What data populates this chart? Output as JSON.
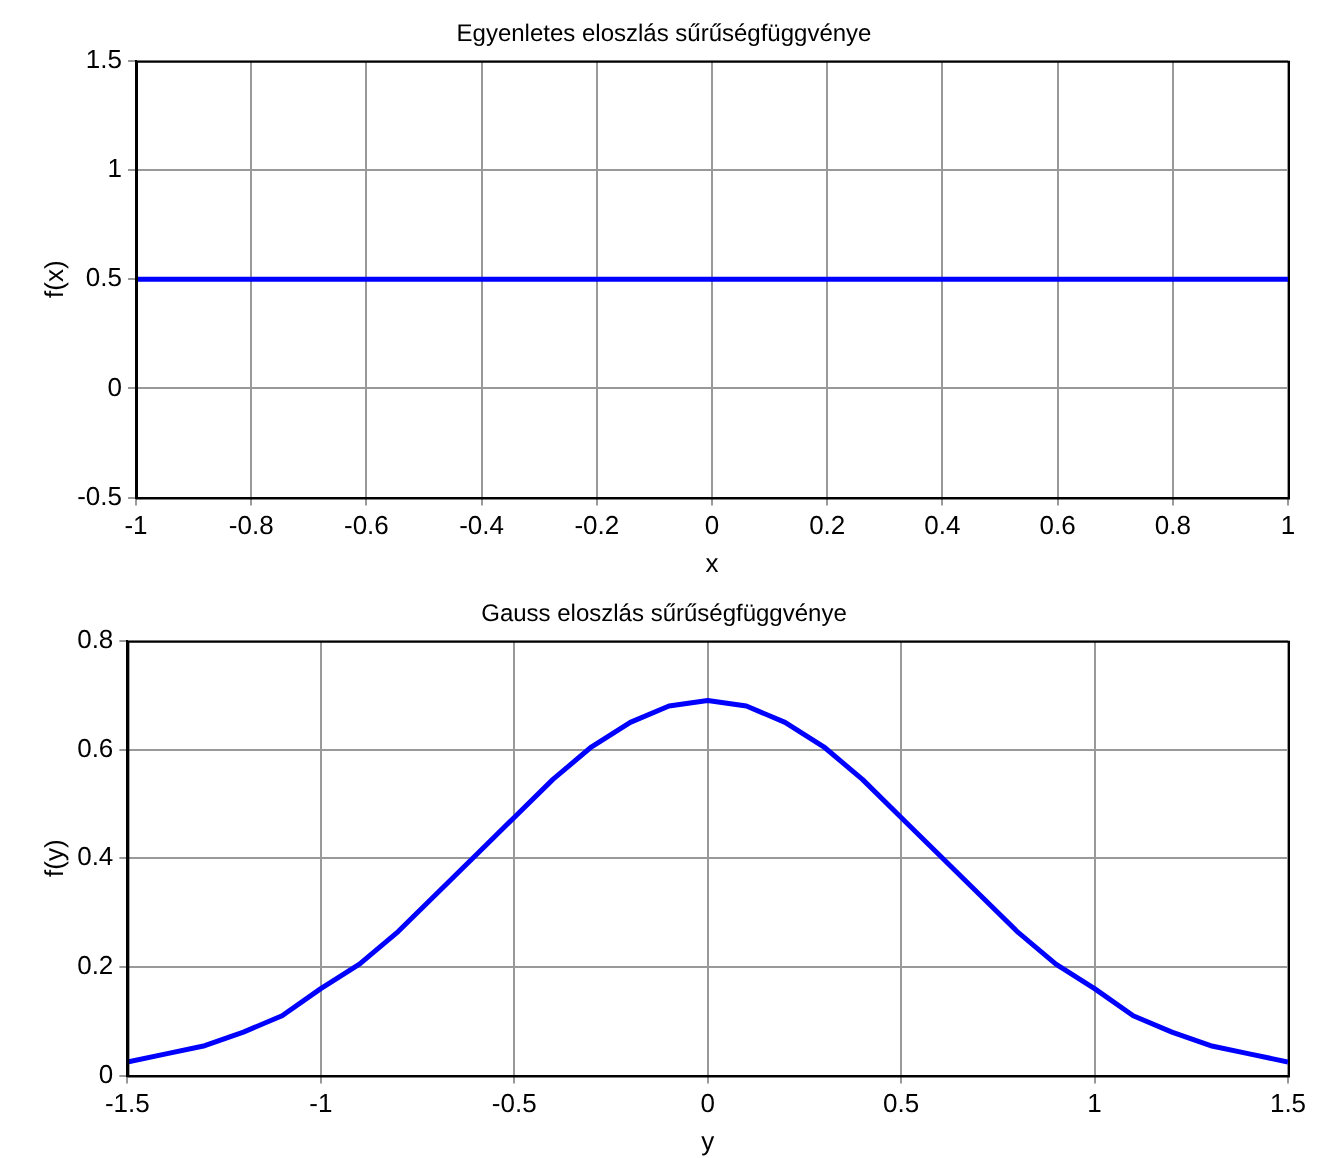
{
  "chart_data": [
    {
      "type": "line",
      "title": "Egyenletes eloszlás sűrűségfüggvénye",
      "xlabel": "x",
      "ylabel": "f(x)",
      "x": [
        -1,
        1
      ],
      "series": [
        {
          "color": "#0000ff",
          "values": [
            0.5,
            0.5
          ]
        }
      ],
      "xlim": [
        -1,
        1
      ],
      "xticks": [
        -1,
        -0.8,
        -0.6,
        -0.4,
        -0.2,
        0,
        0.2,
        0.4,
        0.6,
        0.8,
        1
      ],
      "ylim": [
        -0.5,
        1.5
      ],
      "yticks": [
        -0.5,
        0,
        0.5,
        1,
        1.5
      ],
      "grid": true,
      "legend": false,
      "marker": "none",
      "line_style": "solid"
    },
    {
      "type": "line",
      "title": "Gauss eloszlás sűrűségfüggvénye",
      "xlabel": "y",
      "ylabel": "f(y)",
      "x": [
        -1.5,
        -1.4,
        -1.3,
        -1.2,
        -1.1,
        -1.0,
        -0.9,
        -0.8,
        -0.7,
        -0.6,
        -0.5,
        -0.4,
        -0.3,
        -0.2,
        -0.1,
        0,
        0.1,
        0.2,
        0.3,
        0.4,
        0.5,
        0.6,
        0.7,
        0.8,
        0.9,
        1.0,
        1.1,
        1.2,
        1.3,
        1.4,
        1.5
      ],
      "series": [
        {
          "color": "#0000ff",
          "values": [
            0.025,
            0.04,
            0.055,
            0.08,
            0.11,
            0.16,
            0.205,
            0.265,
            0.335,
            0.405,
            0.475,
            0.545,
            0.605,
            0.65,
            0.68,
            0.69,
            0.68,
            0.65,
            0.605,
            0.545,
            0.475,
            0.405,
            0.335,
            0.265,
            0.205,
            0.16,
            0.11,
            0.08,
            0.055,
            0.04,
            0.025
          ]
        }
      ],
      "xlim": [
        -1.5,
        1.5
      ],
      "xticks": [
        -1.5,
        -1,
        -0.5,
        0,
        0.5,
        1,
        1.5
      ],
      "ylim": [
        0,
        0.8
      ],
      "yticks": [
        0,
        0.2,
        0.4,
        0.6,
        0.8
      ],
      "grid": true,
      "legend": false,
      "marker": "none",
      "line_style": "solid"
    }
  ]
}
